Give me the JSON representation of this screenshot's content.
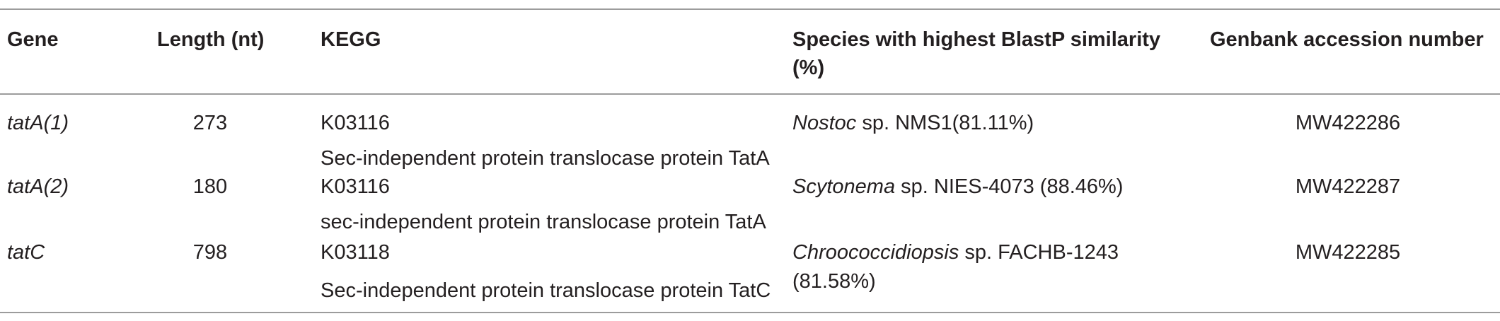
{
  "table": {
    "headers": {
      "gene": "Gene",
      "length": "Length (nt)",
      "kegg": "KEGG",
      "species_line1": "Species with highest BlastP similarity",
      "species_line2": "(%)",
      "genbank": "Genbank accession number"
    },
    "rows": [
      {
        "gene": "tatA(1)",
        "length": "273",
        "kegg_id": "K03116",
        "kegg_desc": "Sec-independent protein translocase protein TatA",
        "species_italic": "Nostoc",
        "species_rest": " sp. NMS1(81.11%)",
        "species_line2": "",
        "genbank": "MW422286"
      },
      {
        "gene": "tatA(2)",
        "length": "180",
        "kegg_id": "K03116",
        "kegg_desc": "sec-independent protein translocase protein TatA",
        "species_italic": "Scytonema",
        "species_rest": " sp. NIES-4073 (88.46%)",
        "species_line2": "",
        "genbank": "MW422287"
      },
      {
        "gene": "tatC",
        "length": "798",
        "kegg_id": "K03118",
        "kegg_desc": "Sec-independent protein translocase protein TatC",
        "species_italic": "Chroococcidiopsis",
        "species_rest": " sp. FACHB-1243",
        "species_line2": "(81.58%)",
        "genbank": "MW422285"
      }
    ]
  }
}
